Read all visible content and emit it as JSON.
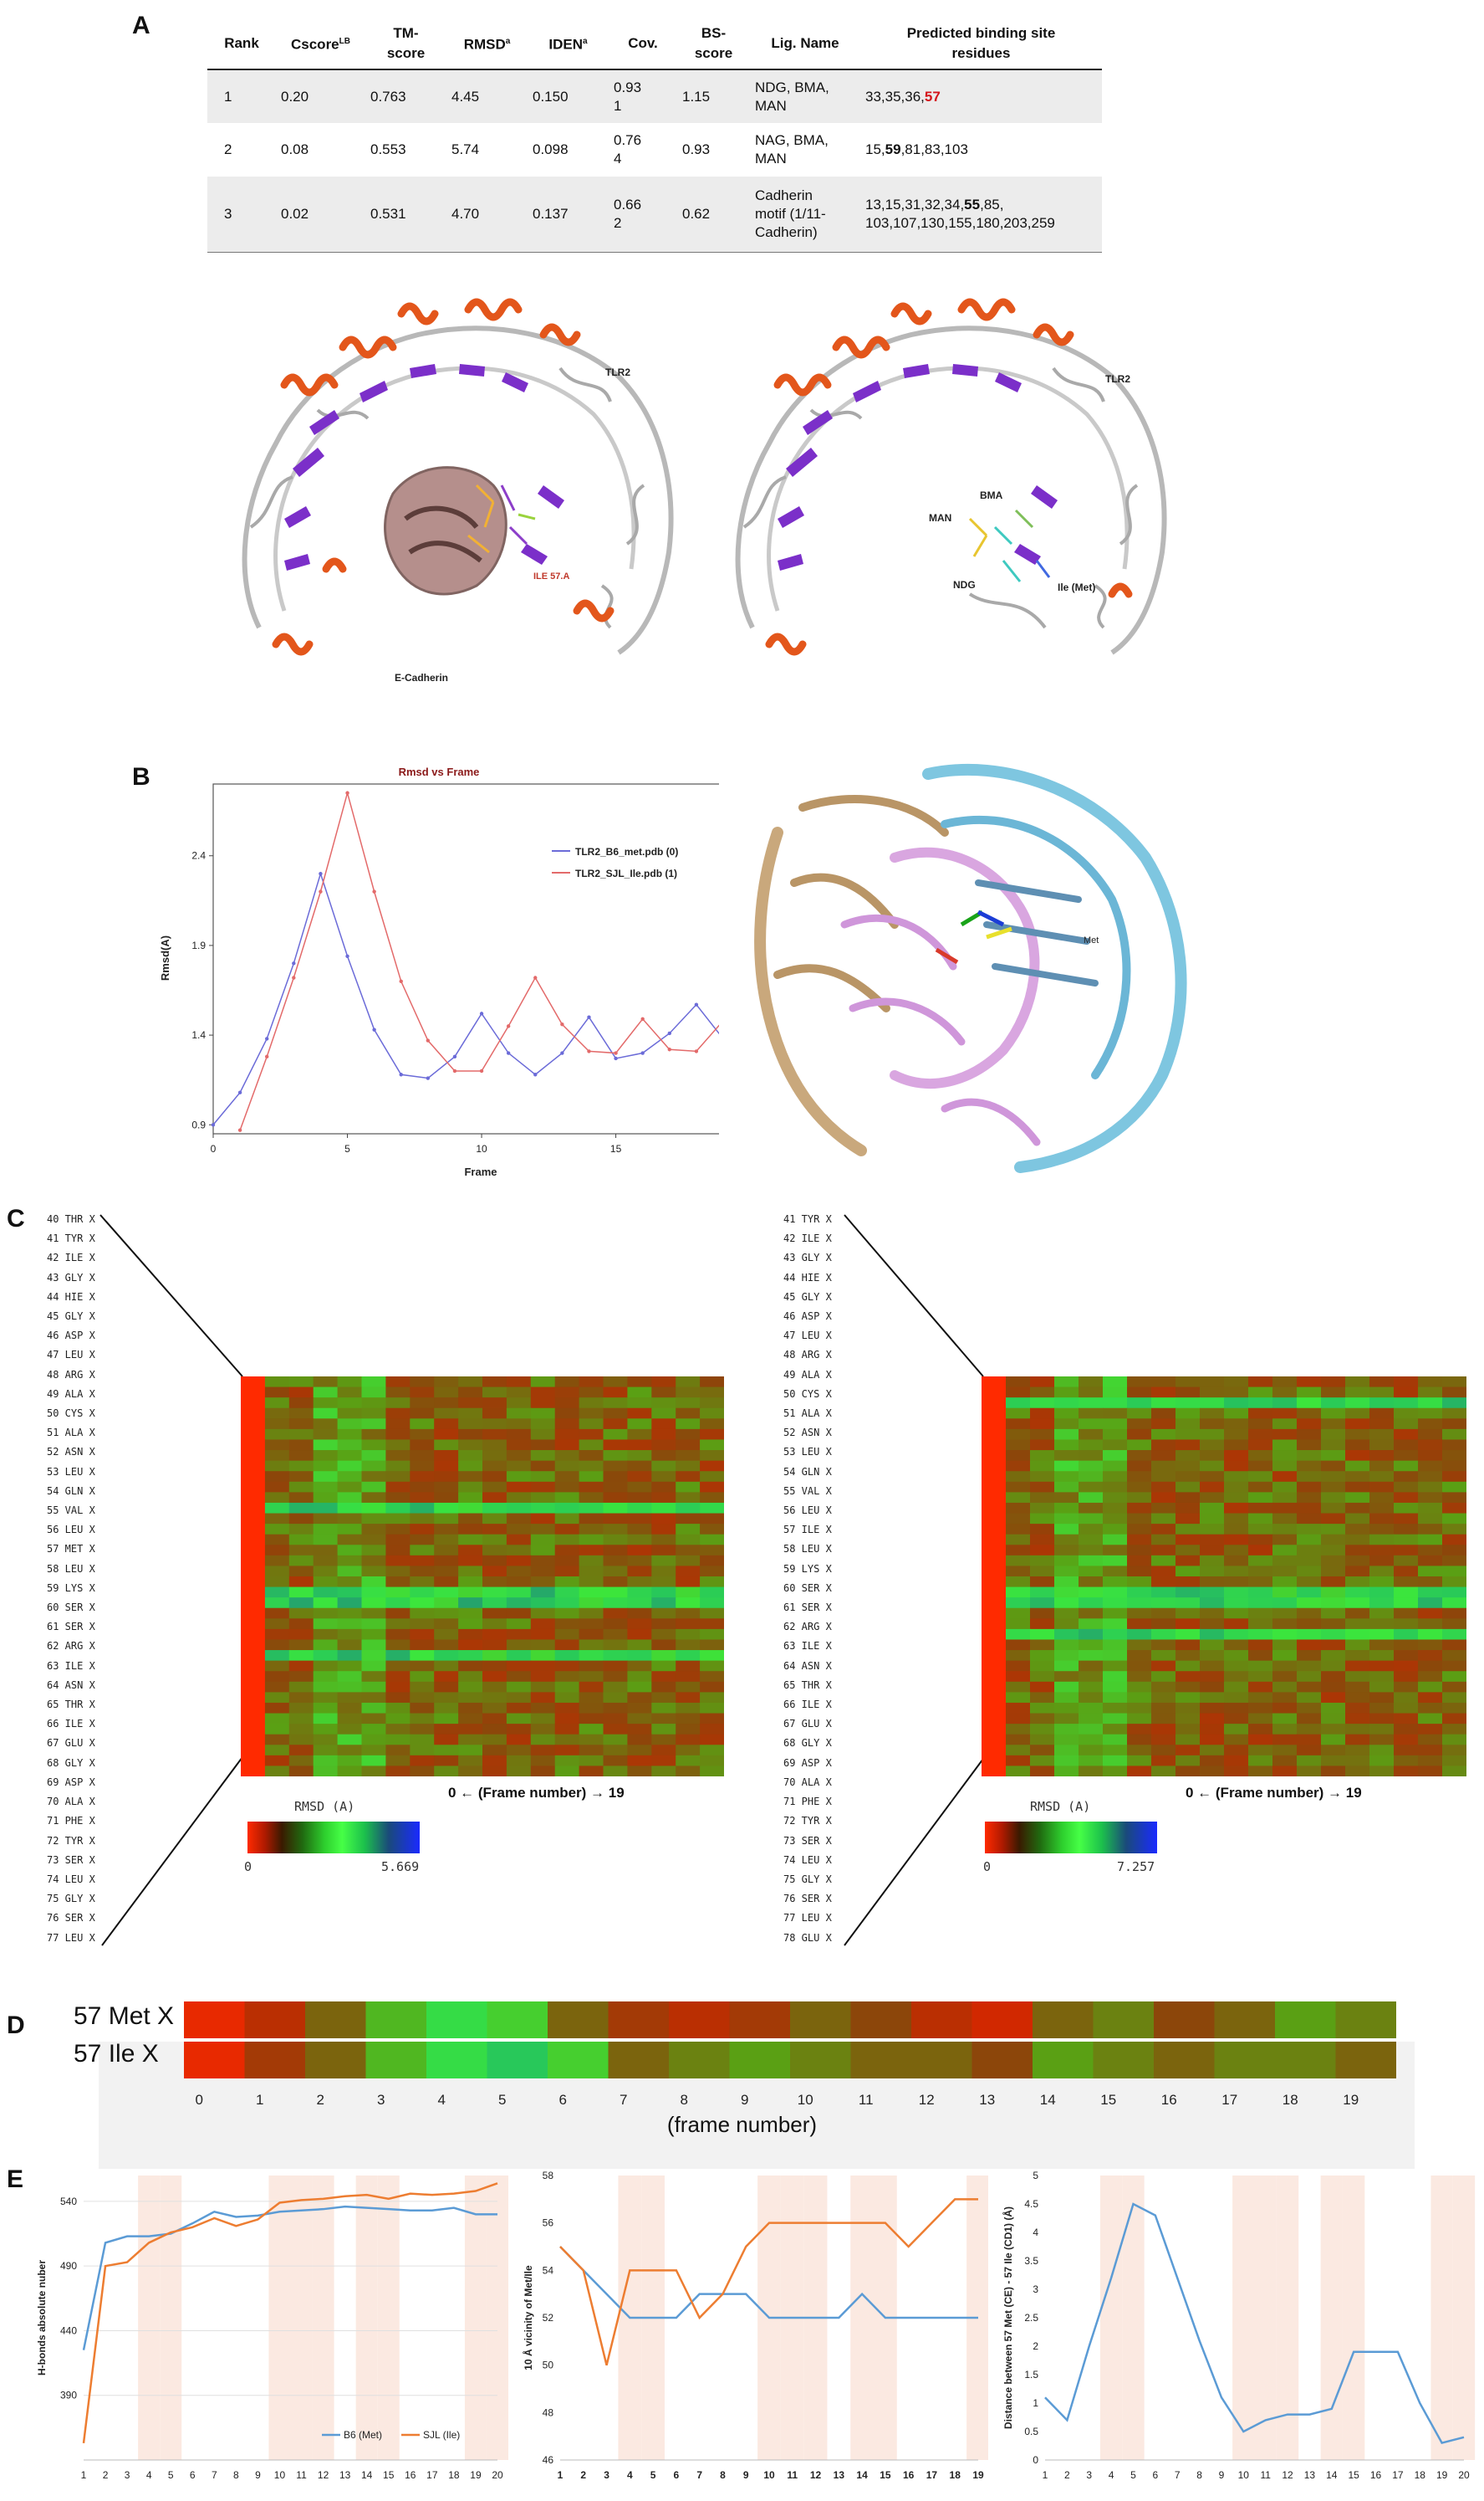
{
  "panels": {
    "a": "A",
    "b": "B",
    "c": "C",
    "d": "D",
    "e": "E"
  },
  "table": {
    "headers": [
      "Rank",
      "Cscore^LB",
      "TM-score",
      "RMSD^a",
      "IDEN^a",
      "Cov.",
      "BS-score",
      "Lig. Name",
      "Predicted binding site residues"
    ],
    "header_parts": {
      "cscore": "Cscore",
      "cscore_sup": "LB",
      "tm1": "TM-",
      "tm2": "score",
      "rmsd": "RMSD",
      "rmsd_sup": "a",
      "iden": "IDEN",
      "iden_sup": "a",
      "bs1": "BS-",
      "bs2": "score",
      "pred1": "Predicted binding site",
      "pred2": "residues"
    },
    "rows": [
      {
        "rank": "1",
        "cscore": "0.20",
        "tm": "0.763",
        "rmsd": "4.45",
        "iden": "0.150",
        "cov1": "0.93",
        "cov2": "1",
        "bs": "1.15",
        "lig1": "NDG, BMA,",
        "lig2": "MAN",
        "res_a": "33,35,36,",
        "res_b": "57",
        "res_c": ""
      },
      {
        "rank": "2",
        "cscore": "0.08",
        "tm": "0.553",
        "rmsd": "5.74",
        "iden": "0.098",
        "cov1": "0.76",
        "cov2": "4",
        "bs": "0.93",
        "lig1": "NAG, BMA,",
        "lig2": "MAN",
        "res_a": "15,",
        "res_b": "59",
        "res_c": ",81,83,103"
      },
      {
        "rank": "3",
        "cscore": "0.02",
        "tm": "0.531",
        "rmsd": "4.70",
        "iden": "0.137",
        "cov1": "0.66",
        "cov2": "2",
        "bs": "0.62",
        "lig1": "Cadherin",
        "lig2": "motif (1/11-",
        "lig3": "Cadherin)",
        "res_a": "13,15,31,32,34,",
        "res_b": "55",
        "res_c": ",85,",
        "res_d": "103,107,130,155,180,203,259"
      }
    ]
  },
  "structures": {
    "left": {
      "tlr2": "TLR2",
      "ecad": "E-Cadherin",
      "ile": "ILE 57.A"
    },
    "right": {
      "tlr2": "TLR2",
      "bma": "BMA",
      "man": "MAN",
      "ndg": "NDG",
      "ile": "Ile (Met)"
    },
    "b_right": {
      "met": "Met"
    }
  },
  "chart_data": [
    {
      "id": "rmsd-vs-frame",
      "type": "line",
      "title": "Rmsd vs Frame",
      "xlabel": "Frame",
      "ylabel": "Rmsd(A)",
      "xlim": [
        0,
        19
      ],
      "ylim": [
        0.85,
        2.8
      ],
      "xticks": [
        "0",
        "5",
        "10",
        "15"
      ],
      "yticks": [
        "0.9",
        "1.4",
        "1.9",
        "2.4"
      ],
      "legend_position": "top-right",
      "series": [
        {
          "name": "TLR2_B6_met.pdb (0)",
          "color": "#6b6bd8",
          "x": [
            0,
            1,
            2,
            3,
            4,
            5,
            6,
            7,
            8,
            9,
            10,
            11,
            12,
            13,
            14,
            15,
            16,
            17,
            18,
            19
          ],
          "y": [
            0.9,
            1.08,
            1.38,
            1.8,
            2.3,
            1.84,
            1.43,
            1.18,
            1.16,
            1.28,
            1.52,
            1.3,
            1.18,
            1.3,
            1.5,
            1.27,
            1.3,
            1.41,
            1.57,
            1.38
          ]
        },
        {
          "name": "TLR2_SJL_Ile.pdb (1)",
          "color": "#e36a6a",
          "x": [
            1,
            2,
            3,
            4,
            5,
            6,
            7,
            8,
            9,
            10,
            11,
            12,
            13,
            14,
            15,
            16,
            17,
            18,
            19
          ],
          "y": [
            0.87,
            1.28,
            1.72,
            2.2,
            2.75,
            2.2,
            1.7,
            1.37,
            1.2,
            1.2,
            1.45,
            1.72,
            1.46,
            1.31,
            1.3,
            1.49,
            1.32,
            1.31,
            1.48
          ]
        }
      ]
    },
    {
      "id": "e-hbonds",
      "type": "line",
      "xlabel": "",
      "ylabel": "H-bonds absolute nuber",
      "xlim": [
        1,
        20
      ],
      "ylim": [
        340,
        560
      ],
      "yticks": [
        "390",
        "440",
        "490",
        "540"
      ],
      "legend_position": "bottom-right",
      "series": [
        {
          "name": "B6 (Met)",
          "color": "#5b9bd5",
          "x": [
            1,
            2,
            3,
            4,
            5,
            6,
            7,
            8,
            9,
            10,
            11,
            12,
            13,
            14,
            15,
            16,
            17,
            18,
            19,
            20
          ],
          "y": [
            425,
            508,
            513,
            513,
            515,
            523,
            532,
            528,
            529,
            532,
            533,
            534,
            536,
            535,
            534,
            533,
            533,
            535,
            530,
            530
          ]
        },
        {
          "name": "SJL (Ile)",
          "color": "#ed7d31",
          "x": [
            1,
            2,
            3,
            4,
            5,
            6,
            7,
            8,
            9,
            10,
            11,
            12,
            13,
            14,
            15,
            16,
            17,
            18,
            19,
            20
          ],
          "y": [
            353,
            490,
            493,
            508,
            516,
            520,
            527,
            521,
            526,
            539,
            541,
            542,
            544,
            545,
            542,
            546,
            545,
            546,
            548,
            554
          ]
        }
      ]
    },
    {
      "id": "e-vicinity",
      "type": "line",
      "ylabel": "10 Å vicinity of Met/Ile",
      "xlim": [
        1,
        19
      ],
      "ylim": [
        46,
        58
      ],
      "yticks": [
        "46",
        "48",
        "50",
        "52",
        "54",
        "56",
        "58"
      ],
      "series": [
        {
          "name": "B6 (Met)",
          "color": "#5b9bd5",
          "x": [
            1,
            2,
            3,
            4,
            5,
            6,
            7,
            8,
            9,
            10,
            11,
            12,
            13,
            14,
            15,
            16,
            17,
            18,
            19
          ],
          "y": [
            55,
            54,
            53,
            52,
            52,
            52,
            53,
            53,
            53,
            52,
            52,
            52,
            52,
            53,
            52,
            52,
            52,
            52,
            52
          ]
        },
        {
          "name": "SJL (Ile)",
          "color": "#ed7d31",
          "x": [
            1,
            2,
            3,
            4,
            5,
            6,
            7,
            8,
            9,
            10,
            11,
            12,
            13,
            14,
            15,
            16,
            17,
            18,
            19
          ],
          "y": [
            55,
            54,
            50,
            54,
            54,
            54,
            52,
            53,
            55,
            56,
            56,
            56,
            56,
            56,
            56,
            55,
            56,
            57,
            57
          ]
        }
      ]
    },
    {
      "id": "e-distance",
      "type": "line",
      "ylabel": "Distance between 57 Met (CE) - 57 Ile (CD1) (Å)",
      "xlim": [
        1,
        20
      ],
      "ylim": [
        0,
        5
      ],
      "yticks": [
        "0",
        "0.5",
        "1",
        "1.5",
        "2",
        "2.5",
        "3",
        "3.5",
        "4",
        "4.5",
        "5"
      ],
      "series": [
        {
          "name": "",
          "color": "#5b9bd5",
          "x": [
            1,
            2,
            3,
            4,
            5,
            6,
            7,
            8,
            9,
            10,
            11,
            12,
            13,
            14,
            15,
            16,
            17,
            18,
            19,
            20
          ],
          "y": [
            1.1,
            0.7,
            2.0,
            3.2,
            4.5,
            4.3,
            3.2,
            2.1,
            1.1,
            0.5,
            0.7,
            0.8,
            0.8,
            0.9,
            1.9,
            1.9,
            1.9,
            1.0,
            0.3,
            0.4
          ]
        }
      ]
    }
  ],
  "heatmap_c": {
    "left": {
      "residues": [
        "40 THR X",
        "41 TYR X",
        "42 ILE X",
        "43 GLY X",
        "44 HIE X",
        "45 GLY X",
        "46 ASP X",
        "47 LEU X",
        "48 ARG X",
        "49 ALA X",
        "50 CYS X",
        "51 ALA X",
        "52 ASN X",
        "53 LEU X",
        "54 GLN X",
        "55 VAL X",
        "56 LEU X",
        "57 MET X",
        "58 LEU X",
        "59 LYS X",
        "60 SER X",
        "61 SER X",
        "62 ARG X",
        "63 ILE X",
        "64 ASN X",
        "65 THR X",
        "66 ILE X",
        "67 GLU X",
        "68 GLY X",
        "69 ASP X",
        "70 ALA X",
        "71 PHE X",
        "72 TYR X",
        "73 SER X",
        "74 LEU X",
        "75 GLY X",
        "76 SER X",
        "77 LEU X"
      ],
      "cbar_min": "0",
      "cbar_max": "5.669",
      "cbar_title": "RMSD (A)",
      "frame_caption": "0 ← (Frame number) → 19"
    },
    "right": {
      "residues": [
        "41 TYR X",
        "42 ILE X",
        "43 GLY X",
        "44 HIE X",
        "45 GLY X",
        "46 ASP X",
        "47 LEU X",
        "48 ARG X",
        "49 ALA X",
        "50 CYS X",
        "51 ALA X",
        "52 ASN X",
        "53 LEU X",
        "54 GLN X",
        "55 VAL X",
        "56 LEU X",
        "57 ILE X",
        "58 LEU X",
        "59 LYS X",
        "60 SER X",
        "61 SER X",
        "62 ARG X",
        "63 ILE X",
        "64 ASN X",
        "65 THR X",
        "66 ILE X",
        "67 GLU X",
        "68 GLY X",
        "69 ASP X",
        "70 ALA X",
        "71 PHE X",
        "72 TYR X",
        "73 SER X",
        "74 LEU X",
        "75 GLY X",
        "76 SER X",
        "77 LEU X",
        "78 GLU X"
      ],
      "cbar_min": "0",
      "cbar_max": "7.257",
      "cbar_title": "RMSD (A)",
      "frame_caption": "0 ← (Frame number) → 19"
    }
  },
  "panel_d": {
    "row1_label": "57 Met X",
    "row2_label": "57   Ile X",
    "ticks": [
      "0",
      "1",
      "2",
      "3",
      "4",
      "5",
      "6",
      "7",
      "8",
      "9",
      "10",
      "11",
      "12",
      "13",
      "14",
      "15",
      "16",
      "17",
      "18",
      "19"
    ],
    "xlabel": "(frame number)",
    "met_values": [
      0.05,
      0.15,
      0.3,
      0.45,
      0.6,
      0.5,
      0.3,
      0.2,
      0.15,
      0.2,
      0.3,
      0.25,
      0.15,
      0.1,
      0.3,
      0.35,
      0.25,
      0.3,
      0.4,
      0.35
    ],
    "ile_values": [
      0.05,
      0.2,
      0.3,
      0.45,
      0.6,
      0.7,
      0.5,
      0.3,
      0.35,
      0.4,
      0.35,
      0.3,
      0.3,
      0.25,
      0.4,
      0.35,
      0.3,
      0.35,
      0.35,
      0.3
    ]
  },
  "panel_e": {
    "x1": [
      "1",
      "2",
      "3",
      "4",
      "5",
      "6",
      "7",
      "8",
      "9",
      "10",
      "11",
      "12",
      "13",
      "14",
      "15",
      "16",
      "17",
      "18",
      "19",
      "20"
    ],
    "x2": [
      "1",
      "2",
      "3",
      "4",
      "5",
      "6",
      "7",
      "8",
      "9",
      "10",
      "11",
      "12",
      "13",
      "14",
      "15",
      "16",
      "17",
      "18",
      "19"
    ],
    "shaded_frames": [
      4,
      5,
      10,
      11,
      12,
      14,
      15,
      19,
      20
    ],
    "colors": {
      "met": "#5b9bd5",
      "ile": "#ed7d31",
      "shade": "#fbe9e1"
    }
  }
}
